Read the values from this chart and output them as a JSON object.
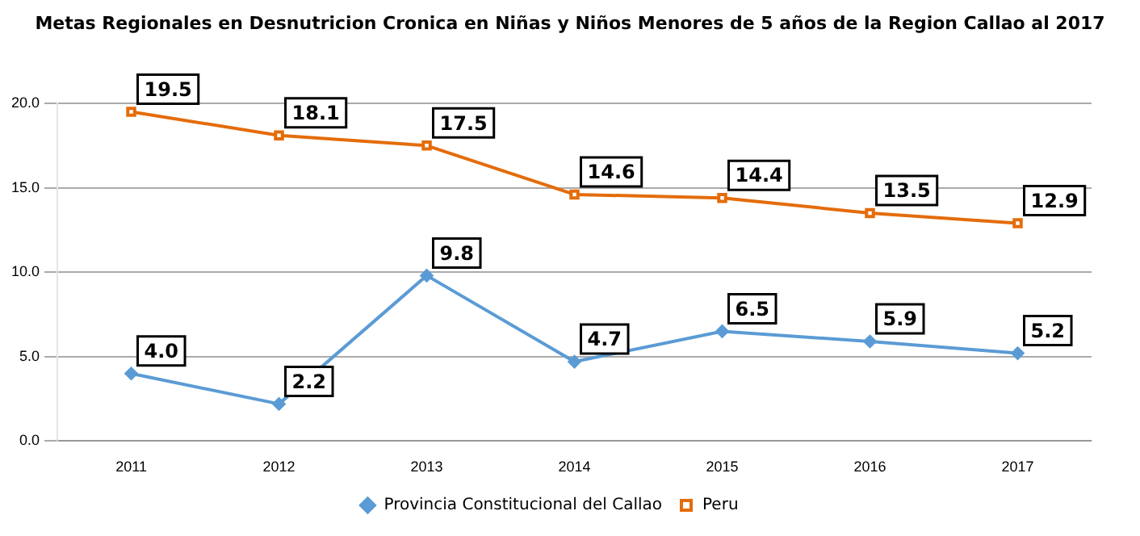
{
  "chart_data": {
    "type": "line",
    "title": "Metas Regionales en Desnutricion Cronica en Niñas y Niños Menores de 5 años de la Region Callao al 2017",
    "categories": [
      "2011",
      "2012",
      "2013",
      "2014",
      "2015",
      "2016",
      "2017"
    ],
    "series": [
      {
        "name": "Provincia Constitucional del Callao",
        "color": "#5b9bd5",
        "marker": "diamond",
        "values": [
          4.0,
          2.2,
          9.8,
          4.7,
          6.5,
          5.9,
          5.2
        ],
        "value_labels": [
          "4.0",
          "2.2",
          "9.8",
          "4.7",
          "6.5",
          "5.9",
          "5.2"
        ]
      },
      {
        "name": "Peru",
        "color": "#e46c0a",
        "marker": "square",
        "values": [
          19.5,
          18.1,
          17.5,
          14.6,
          14.4,
          13.5,
          12.9
        ],
        "value_labels": [
          "19.5",
          "18.1",
          "17.5",
          "14.6",
          "14.4",
          "13.5",
          "12.9"
        ]
      }
    ],
    "ylim": [
      0,
      20
    ],
    "yticks": [
      {
        "value": 0,
        "label": "0.0"
      },
      {
        "value": 5,
        "label": "5.0"
      },
      {
        "value": 10,
        "label": "10.0"
      },
      {
        "value": 15,
        "label": "15.0"
      },
      {
        "value": 20,
        "label": "20.0"
      }
    ],
    "grid": "y",
    "legend": "bottom"
  }
}
